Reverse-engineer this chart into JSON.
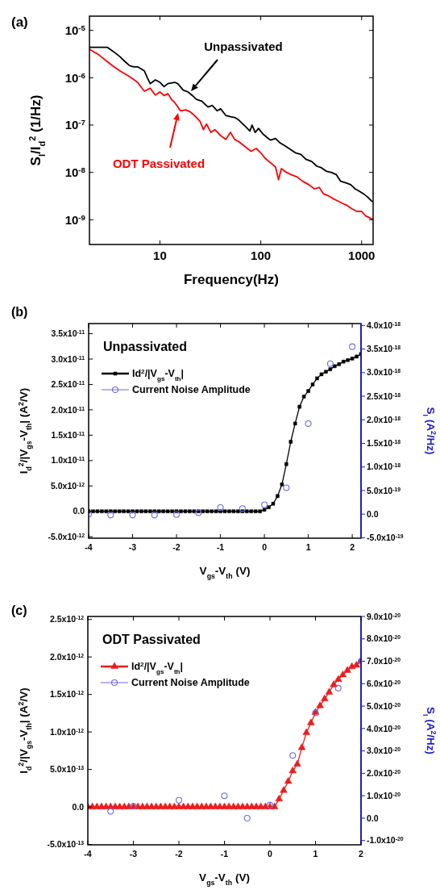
{
  "chart_data": [
    {
      "type": "line",
      "title": "(a)",
      "xlabel": "Frequency(Hz)",
      "ylabel": "S$_{I}$/I$_{d}$$^{2}$ (1/Hz)",
      "log": "xy",
      "xlim": [
        2,
        1300
      ],
      "ylim": [
        3e-10,
        2e-05
      ],
      "xticks": [
        10,
        100,
        1000
      ],
      "yticks": [
        {
          "value": 1e-09,
          "label": "10$^{-9}$"
        },
        {
          "value": 1e-08,
          "label": "10$^{-8}$"
        },
        {
          "value": 1e-07,
          "label": "10$^{-7}$"
        },
        {
          "value": 1e-06,
          "label": "10$^{-6}$"
        },
        {
          "value": 1e-05,
          "label": "10$^{-5}$"
        }
      ],
      "series": [
        {
          "color": "#000000",
          "x": [
            2,
            2.5,
            3,
            3.5,
            4,
            4.5,
            5,
            5.5,
            6,
            7,
            7.5,
            8,
            9,
            10,
            11,
            12,
            14,
            15,
            17,
            19,
            21,
            23,
            26,
            30,
            33,
            37,
            40,
            45,
            50,
            55,
            60,
            65,
            70,
            78,
            82,
            88,
            95,
            105,
            115,
            125,
            140,
            155,
            175,
            200,
            220,
            250,
            280,
            320,
            360,
            400,
            450,
            500,
            560,
            620,
            700,
            780,
            860,
            950,
            1050,
            1150,
            1250,
            1300
          ],
          "values": [
            4.4e-06,
            4.4e-06,
            4.4e-06,
            3.5e-06,
            2.8e-06,
            2.2e-06,
            1.8e-06,
            1.7e-06,
            1.7e-06,
            1.4e-06,
            1e-06,
            7.5e-07,
            9e-07,
            8e-07,
            6.5e-07,
            7.5e-07,
            8e-07,
            7.5e-07,
            5.5e-07,
            5e-07,
            4.2e-07,
            3.5e-07,
            3.2e-07,
            2.4e-07,
            2.6e-07,
            2e-07,
            2.2e-07,
            1.6e-07,
            1.5e-07,
            1.45e-07,
            1.3e-07,
            1.1e-07,
            9.5e-08,
            7.5e-08,
            1e-07,
            7e-08,
            8.5e-08,
            6.5e-08,
            5.5e-08,
            4.8e-08,
            5.2e-08,
            4.2e-08,
            3.6e-08,
            3e-08,
            2.6e-08,
            2.4e-08,
            1.9e-08,
            1.7e-08,
            1.35e-08,
            1.25e-08,
            1.05e-08,
            1e-08,
            9e-09,
            6.5e-09,
            6e-09,
            5.5e-09,
            4.5e-09,
            4e-09,
            3.5e-09,
            3e-09,
            2.5e-09,
            2.4e-09
          ]
        },
        {
          "color": "#ff0000",
          "x": [
            2,
            2.5,
            3,
            3.5,
            4,
            5,
            6,
            7,
            8,
            9,
            10,
            11,
            12,
            13,
            14,
            16,
            18,
            20,
            22,
            25,
            27,
            29,
            32,
            35,
            40,
            45,
            50,
            55,
            60,
            70,
            80,
            90,
            100,
            110,
            125,
            140,
            150,
            160,
            180,
            200,
            230,
            260,
            300,
            340,
            380,
            420,
            470,
            520,
            580,
            650,
            720,
            800,
            900,
            1000,
            1100,
            1200,
            1300
          ],
          "values": [
            4e-06,
            3e-06,
            2.2e-06,
            1.7e-06,
            1.4e-06,
            1.05e-06,
            8e-07,
            5.2e-07,
            6e-07,
            4.3e-07,
            5e-07,
            4.2e-07,
            4.6e-07,
            3.5e-07,
            3e-07,
            2e-07,
            2.1e-07,
            1.9e-07,
            1.6e-07,
            1.2e-07,
            8e-08,
            1.05e-07,
            7e-08,
            8e-08,
            6e-08,
            5e-08,
            7e-08,
            5e-08,
            4.5e-08,
            3.5e-08,
            2.8e-08,
            3.2e-08,
            2.6e-08,
            2e-08,
            1.6e-08,
            1.3e-08,
            7e-09,
            1.2e-08,
            1e-08,
            9e-09,
            8e-09,
            6.5e-09,
            5.5e-09,
            4.5e-09,
            4.8e-09,
            3.5e-09,
            3.2e-09,
            2.8e-09,
            2.5e-09,
            2.2e-09,
            2e-09,
            1.7e-09,
            1.5e-09,
            1.5e-09,
            1.2e-09,
            1.1e-09,
            1e-09
          ]
        }
      ],
      "annotations": [
        "Unpassivated",
        "ODT Passivated"
      ]
    },
    {
      "type": "line",
      "title": "(b)",
      "xlabel": "V$_{gs}$-V$_{th}$ (V)",
      "ylabel": "I$_{d}$$^{2}$/|V$_{gs}$-V$_{th}$| (A$^{2}$/V)",
      "y2label": "S$_{I}$ (A$^{2}$/Hz)",
      "xlim": [
        -4,
        2.2
      ],
      "ylim": [
        -5.3e-12,
        3.7e-11
      ],
      "y2lim": [
        -5.1e-19,
        4.04e-18
      ],
      "xticks": [
        -4,
        -3,
        -2,
        -1,
        0,
        1,
        2
      ],
      "yticks": [
        {
          "value": -5e-12,
          "label": "-5.0x10$^{-12}$"
        },
        {
          "value": 0,
          "label": "0.0"
        },
        {
          "value": 5e-12,
          "label": "5.0x10$^{-12}$"
        },
        {
          "value": 1e-11,
          "label": "1.0x10$^{-11}$"
        },
        {
          "value": 1.5e-11,
          "label": "1.5x10$^{-11}$"
        },
        {
          "value": 2e-11,
          "label": "2.0x10$^{-11}$"
        },
        {
          "value": 2.5e-11,
          "label": "2.5x10$^{-11}$"
        },
        {
          "value": 3e-11,
          "label": "3.0x10$^{-11}$"
        },
        {
          "value": 3.5e-11,
          "label": "3.5x10$^{-11}$"
        }
      ],
      "y2ticks": [
        {
          "value": -5e-19,
          "label": "-5.0x10$^{-19}$"
        },
        {
          "value": 0,
          "label": "0.0"
        },
        {
          "value": 5e-19,
          "label": "5.0x10$^{-19}$"
        },
        {
          "value": 1e-18,
          "label": "1.0x10$^{-18}$"
        },
        {
          "value": 1.5e-18,
          "label": "1.5x10$^{-18}$"
        },
        {
          "value": 2e-18,
          "label": "2.0x10$^{-18}$"
        },
        {
          "value": 2.5e-18,
          "label": "2.5x10$^{-18}$"
        },
        {
          "value": 3e-18,
          "label": "3.0x10$^{-18}$"
        },
        {
          "value": 3.5e-18,
          "label": "3.5x10$^{-18}$"
        },
        {
          "value": 4e-18,
          "label": "4.0x10$^{-18}$"
        }
      ],
      "legend": "top left",
      "series": [
        {
          "name": "Id$^{2}$/|V$_{gs}$-V$_{th}$|",
          "color": "#000000",
          "marker": "square",
          "x": [
            -4,
            -3.9,
            -3.8,
            -3.7,
            -3.6,
            -3.5,
            -3.4,
            -3.3,
            -3.2,
            -3.1,
            -3,
            -2.9,
            -2.8,
            -2.7,
            -2.6,
            -2.5,
            -2.4,
            -2.3,
            -2.2,
            -2.1,
            -2,
            -1.9,
            -1.8,
            -1.7,
            -1.6,
            -1.5,
            -1.4,
            -1.3,
            -1.2,
            -1.1,
            -1,
            -0.9,
            -0.8,
            -0.7,
            -0.6,
            -0.5,
            -0.4,
            -0.3,
            -0.2,
            -0.1,
            0,
            0.1,
            0.2,
            0.3,
            0.4,
            0.5,
            0.6,
            0.7,
            0.8,
            0.9,
            1,
            1.1,
            1.2,
            1.3,
            1.4,
            1.5,
            1.6,
            1.7,
            1.8,
            1.9,
            2,
            2.1,
            2.2
          ],
          "values": [
            0,
            0,
            0,
            0,
            0,
            0,
            0,
            0,
            0,
            0,
            0,
            0,
            0,
            0,
            0,
            0,
            0,
            0,
            0,
            0,
            0,
            0,
            0,
            0,
            0,
            0,
            0,
            0,
            0,
            0,
            0,
            0,
            0,
            0,
            0,
            0,
            0,
            0,
            0,
            0,
            3e-13,
            8e-13,
            1.5e-12,
            3e-12,
            5.3e-12,
            9.3e-12,
            1.37e-11,
            1.73e-11,
            2.06e-11,
            2.26e-11,
            2.37e-11,
            2.5e-11,
            2.62e-11,
            2.7e-11,
            2.75e-11,
            2.8e-11,
            2.86e-11,
            2.9e-11,
            2.95e-11,
            2.98e-11,
            3.01e-11,
            3.05e-11,
            3.1e-11
          ]
        },
        {
          "name": "Current Noise Amplitude",
          "type": "scatter",
          "axis": "y2",
          "color": "#6a6ae0",
          "marker": "circle",
          "x": [
            -4,
            -3.5,
            -3,
            -2.5,
            -2,
            -1.5,
            -1,
            -0.5,
            0,
            0.5,
            1,
            1.5,
            2
          ],
          "values": [
            0,
            -2e-20,
            -2e-20,
            -2e-20,
            -1e-20,
            3e-20,
            1.4e-19,
            1.2e-19,
            2e-19,
            5.6e-19,
            1.92e-18,
            3.19e-18,
            3.55e-18
          ]
        }
      ],
      "annotations": [
        "Unpassivated"
      ]
    },
    {
      "type": "line",
      "title": "(c)",
      "xlabel": "V$_{gs}$-V$_{th}$ (V)",
      "ylabel": "I$_{d}$$^{2}$/|V$_{gs}$-V$_{th}$| (A$^{2}$/V)",
      "y2label": "S$_{I}$ (A$^{2}$/Hz)",
      "xlim": [
        -4,
        2
      ],
      "ylim": [
        -5.05e-13,
        2.54e-12
      ],
      "y2lim": [
        -1.19e-20,
        9e-20
      ],
      "xticks": [
        -4,
        -3,
        -2,
        -1,
        0,
        1,
        2
      ],
      "yticks": [
        {
          "value": -5e-13,
          "label": "-5.0x10$^{-13}$"
        },
        {
          "value": 0,
          "label": "0.0"
        },
        {
          "value": 5e-13,
          "label": "5.0x10$^{-13}$"
        },
        {
          "value": 1e-12,
          "label": "1.0x10$^{-12}$"
        },
        {
          "value": 1.5e-12,
          "label": "1.5x10$^{-12}$"
        },
        {
          "value": 2e-12,
          "label": "2.0x10$^{-12}$"
        },
        {
          "value": 2.5e-12,
          "label": "2.5x10$^{-12}$"
        }
      ],
      "y2ticks": [
        {
          "value": -1e-20,
          "label": "-1.0x10$^{-20}$"
        },
        {
          "value": 0,
          "label": "0.0"
        },
        {
          "value": 1e-20,
          "label": "1.0x10$^{-20}$"
        },
        {
          "value": 2e-20,
          "label": "2.0x10$^{-20}$"
        },
        {
          "value": 3e-20,
          "label": "3.0x10$^{-20}$"
        },
        {
          "value": 4e-20,
          "label": "4.0x10$^{-20}$"
        },
        {
          "value": 5e-20,
          "label": "5.0x10$^{-20}$"
        },
        {
          "value": 6e-20,
          "label": "6.0x10$^{-20}$"
        },
        {
          "value": 7e-20,
          "label": "7.0x10$^{-20}$"
        },
        {
          "value": 8e-20,
          "label": "8.0x10$^{-20}$"
        },
        {
          "value": 9e-20,
          "label": "9.0x10$^{-20}$"
        }
      ],
      "legend": "top left",
      "series": [
        {
          "name": "Id$^{2}$/|V$_{gs}$-V$_{th}$|",
          "color": "#ee1c1c",
          "marker": "triangle",
          "x": [
            -4,
            -3.9,
            -3.8,
            -3.7,
            -3.6,
            -3.5,
            -3.4,
            -3.3,
            -3.2,
            -3.1,
            -3,
            -2.9,
            -2.8,
            -2.7,
            -2.6,
            -2.5,
            -2.4,
            -2.3,
            -2.2,
            -2.1,
            -2,
            -1.9,
            -1.8,
            -1.7,
            -1.6,
            -1.5,
            -1.4,
            -1.3,
            -1.2,
            -1.1,
            -1,
            -0.9,
            -0.8,
            -0.7,
            -0.6,
            -0.5,
            -0.4,
            -0.3,
            -0.2,
            -0.1,
            0,
            0.1,
            0.2,
            0.3,
            0.4,
            0.5,
            0.6,
            0.7,
            0.8,
            0.9,
            1,
            1.1,
            1.2,
            1.3,
            1.4,
            1.5,
            1.6,
            1.7,
            1.8,
            1.9,
            2
          ],
          "values": [
            0,
            0,
            0,
            0,
            0,
            0,
            0,
            0,
            0,
            0,
            0,
            0,
            0,
            0,
            0,
            0,
            0,
            0,
            0,
            0,
            0,
            0,
            0,
            0,
            0,
            0,
            0,
            0,
            0,
            0,
            0,
            0,
            0,
            0,
            0,
            0,
            0,
            0,
            0,
            0,
            0,
            0,
            1.05e-13,
            2.2e-13,
            3.4e-13,
            4.8e-13,
            5.7e-13,
            7.9e-13,
            9.9e-13,
            1.12e-12,
            1.26e-12,
            1.35e-12,
            1.44e-12,
            1.53e-12,
            1.63e-12,
            1.7e-12,
            1.76e-12,
            1.82e-12,
            1.87e-12,
            1.89e-12,
            1.95e-12
          ]
        },
        {
          "name": "Current Noise Amplitude",
          "type": "scatter",
          "axis": "y2",
          "color": "#6a6ae0",
          "marker": "circle",
          "x": [
            -3.5,
            -3,
            -2,
            -1,
            -0.5,
            0,
            0.5,
            1,
            1.5,
            2
          ],
          "values": [
            3e-21,
            5.3e-21,
            8e-21,
            1e-20,
            0,
            5.8e-21,
            2.8e-20,
            4.7e-20,
            5.8e-20,
            7e-20
          ]
        }
      ],
      "annotations": [
        "ODT Passivated"
      ]
    }
  ]
}
